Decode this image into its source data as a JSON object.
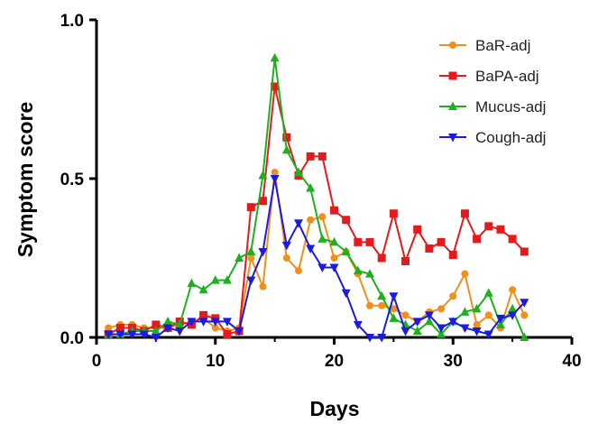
{
  "chart_data": {
    "type": "line",
    "xlabel": "Days",
    "ylabel": "Symptom score",
    "xlim": [
      0,
      40
    ],
    "ylim": [
      0,
      1.0
    ],
    "x_ticks": [
      "0",
      "10",
      "20",
      "30",
      "40"
    ],
    "y_ticks": [
      "0.0",
      "0.5",
      "1.0"
    ],
    "grid": false,
    "legend_position": "top-right",
    "x": [
      1,
      2,
      3,
      4,
      5,
      6,
      7,
      8,
      9,
      10,
      11,
      12,
      13,
      14,
      15,
      16,
      17,
      18,
      19,
      20,
      21,
      22,
      23,
      24,
      25,
      26,
      27,
      28,
      29,
      30,
      31,
      32,
      33,
      34,
      35,
      36
    ],
    "series": [
      {
        "name": "BaR-adj",
        "color": "#f28e1c",
        "marker": "circle",
        "values": [
          0.03,
          0.04,
          0.04,
          0.03,
          0.03,
          0.03,
          0.04,
          0.05,
          0.06,
          0.03,
          0.02,
          0.03,
          0.25,
          0.16,
          0.52,
          0.25,
          0.21,
          0.37,
          0.38,
          0.25,
          0.27,
          0.2,
          0.1,
          0.1,
          0.09,
          0.07,
          0.05,
          0.08,
          0.09,
          0.13,
          0.2,
          0.04,
          0.07,
          0.03,
          0.15,
          0.07
        ]
      },
      {
        "name": "BaPA-adj",
        "color": "#e41a1c",
        "marker": "square",
        "values": [
          0.01,
          0.03,
          0.03,
          0.02,
          0.04,
          0.03,
          0.05,
          0.04,
          0.07,
          0.06,
          0.01,
          0.02,
          0.41,
          0.43,
          0.79,
          0.63,
          0.51,
          0.57,
          0.57,
          0.4,
          0.37,
          0.3,
          0.3,
          0.25,
          0.39,
          0.24,
          0.34,
          0.28,
          0.3,
          0.26,
          0.39,
          0.31,
          0.35,
          0.34,
          0.31,
          0.27
        ]
      },
      {
        "name": "Mucus-adj",
        "color": "#1fb01f",
        "marker": "triangle-up",
        "values": [
          0.01,
          0.01,
          0.02,
          0.02,
          0.02,
          0.05,
          0.04,
          0.17,
          0.15,
          0.18,
          0.18,
          0.25,
          0.27,
          0.51,
          0.88,
          0.59,
          0.52,
          0.47,
          0.31,
          0.3,
          0.27,
          0.21,
          0.2,
          0.13,
          0.06,
          0.04,
          0.02,
          0.05,
          0.01,
          0.05,
          0.08,
          0.09,
          0.14,
          0.04,
          0.09,
          0.0
        ]
      },
      {
        "name": "Cough-adj",
        "color": "#1a1ae0",
        "marker": "triangle-down",
        "values": [
          0.01,
          0.01,
          0.01,
          0.01,
          0.0,
          0.03,
          0.02,
          0.05,
          0.05,
          0.05,
          0.05,
          0.02,
          0.18,
          0.27,
          0.5,
          0.29,
          0.36,
          0.28,
          0.22,
          0.22,
          0.14,
          0.04,
          0.0,
          0.0,
          0.13,
          0.02,
          0.05,
          0.07,
          0.03,
          0.05,
          0.03,
          0.02,
          0.01,
          0.06,
          0.07,
          0.11
        ]
      }
    ]
  }
}
